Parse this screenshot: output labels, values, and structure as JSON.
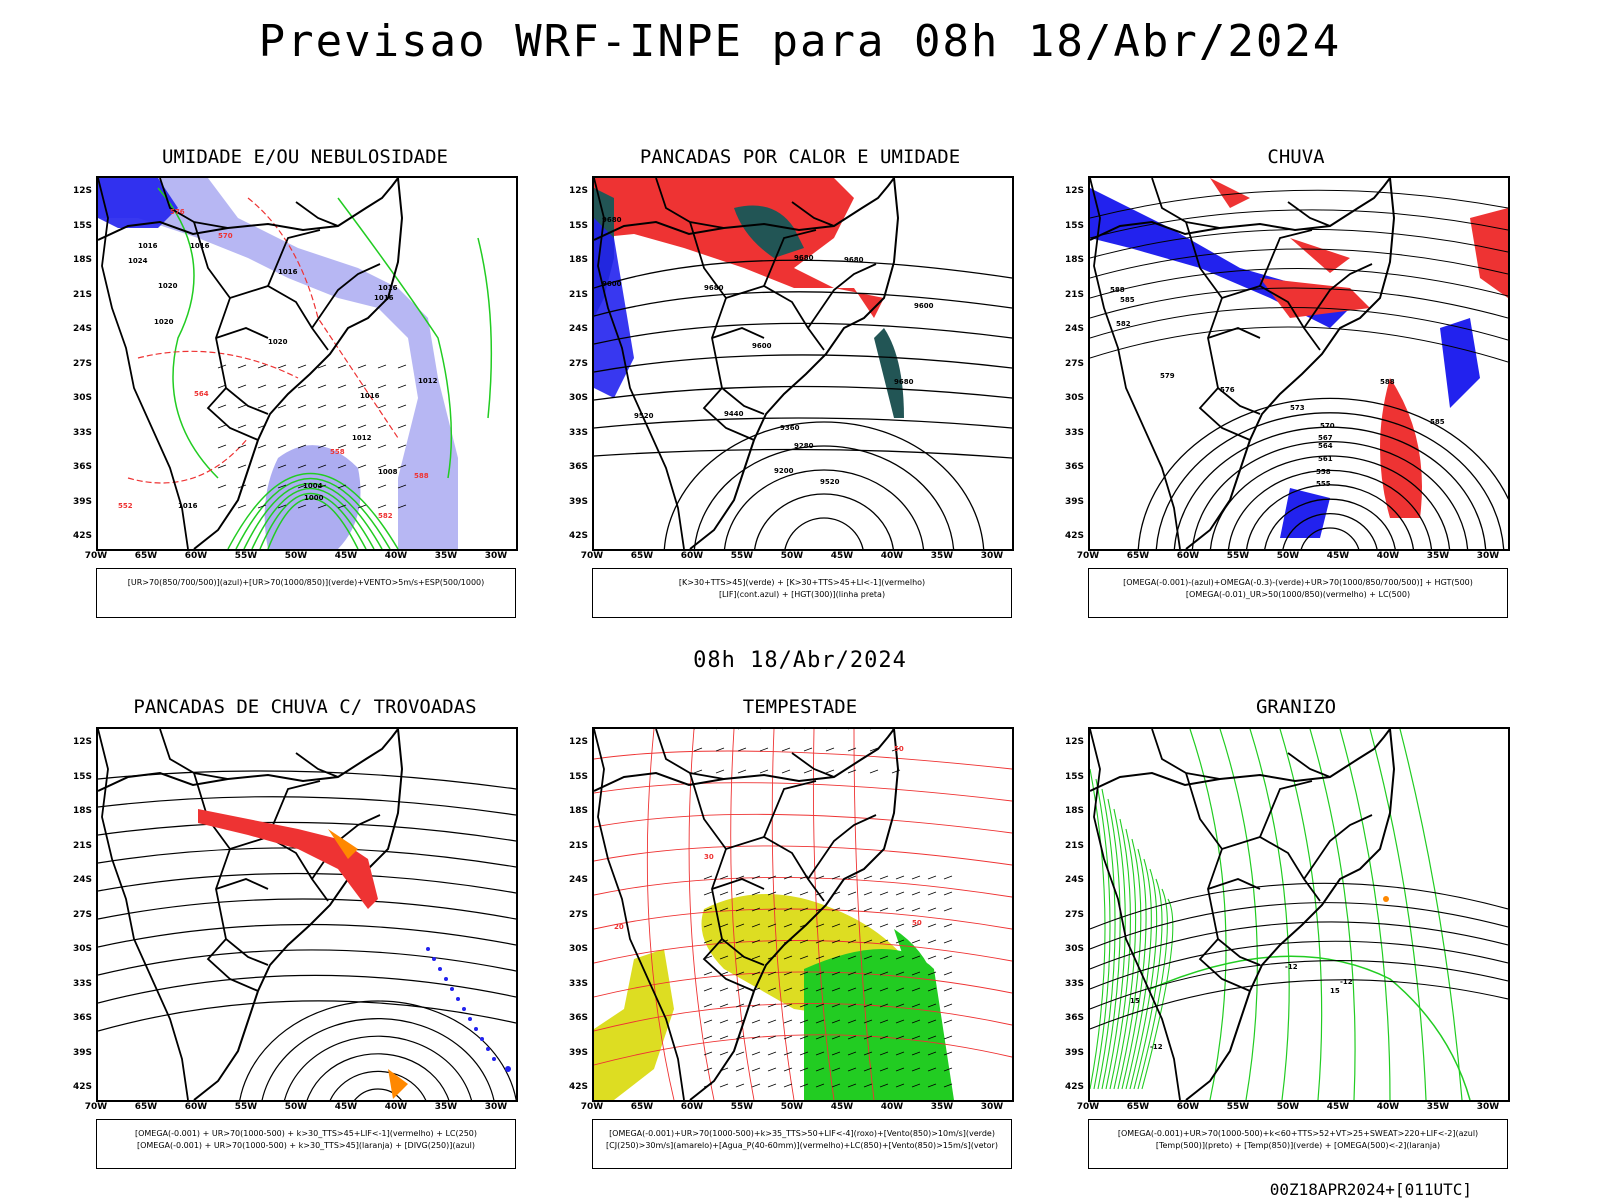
{
  "header": {
    "title": "Previsao WRF-INPE  para 08h 18/Abr/2024"
  },
  "middle_date": "08h 18/Abr/2024",
  "footer": {
    "stamp": "00Z18APR2024+[011UTC]"
  },
  "axes": {
    "lat_ticks": [
      "12S",
      "15S",
      "18S",
      "21S",
      "24S",
      "27S",
      "30S",
      "33S",
      "36S",
      "39S",
      "42S"
    ],
    "lon_ticks": [
      "70W",
      "65W",
      "60W",
      "55W",
      "50W",
      "45W",
      "40W",
      "35W",
      "30W"
    ]
  },
  "panels": [
    {
      "title": "UMIDADE E/OU NEBULOSIDADE",
      "legend": [
        "[UR>70(850/700/500)](azul)+[UR>70(1000/850)](verde)+VENTO>5m/s+ESP(500/1000)"
      ],
      "labels": [
        "1016",
        "1016",
        "1024",
        "1020",
        "1016",
        "1016",
        "1020",
        "1020",
        "1016",
        "1012",
        "1016",
        "1008",
        "1004",
        "1000",
        "1016",
        "1012",
        "576",
        "570",
        "564",
        "558",
        "552",
        "588",
        "582"
      ]
    },
    {
      "title": "PANCADAS POR CALOR E UMIDADE",
      "legend": [
        "[K>30+TTS>45](verde) + [K>30+TTS>45+LI<-1](vermelho)",
        "[LIF](cont.azul) + [HGT(300)](linha preta)"
      ],
      "labels": [
        "9680",
        "9600",
        "9680",
        "9680",
        "9680",
        "9600",
        "9520",
        "9440",
        "9360",
        "9280",
        "9200",
        "9520",
        "9600",
        "9680"
      ]
    },
    {
      "title": "CHUVA",
      "legend": [
        "[OMEGA(-0.001)-(azul)+OMEGA(-0.3)-(verde)+UR>70(1000/850/700/500)] + HGT(500)",
        "[OMEGA(-0.01)_UR>50(1000/850)(vermelho) + LC(500)"
      ],
      "labels": [
        "588",
        "585",
        "582",
        "579",
        "576",
        "573",
        "570",
        "567",
        "564",
        "561",
        "558",
        "555",
        "588",
        "585"
      ]
    },
    {
      "title": "PANCADAS DE CHUVA C/ TROVOADAS",
      "legend": [
        "[OMEGA(-0.001) + UR>70(1000-500) + k>30_TTS>45+LIF<-1](vermelho) + LC(250)",
        "[OMEGA(-0.001) + UR>70(1000-500) + k>30_TTS>45](laranja) + [DIVG(250)](azul)"
      ],
      "labels": []
    },
    {
      "title": "TEMPESTADE",
      "legend": [
        "[OMEGA(-0.001)+UR>70(1000-500)+k>35_TTS>50+LIF<-4](roxo)+[Vento(850)>10m/s](verde)",
        "[CJ(250)>30m/s](amarelo)+[Agua_P(40-60mm)](vermelho)+LC(850)+[Vento(850)>15m/s](vetor)"
      ],
      "labels": [
        "50",
        "50",
        "30",
        "20"
      ]
    },
    {
      "title": "GRANIZO",
      "legend": [
        "[OMEGA(-0.001)+UR>70(1000-500)+k<60+TTS>52+VT>25+SWEAT>220+LIF<-2](azul)",
        "[Temp(500)](preto) + [Temp(850)](verde) + [OMEGA(500)<-2](laranja)"
      ],
      "labels": [
        "-12",
        "-12",
        "15",
        "15",
        "-12"
      ]
    }
  ],
  "colors": {
    "blue": "#2222ee",
    "green": "#22cc22",
    "red": "#ee3333",
    "orange": "#ff8800",
    "yellow": "#dddd22",
    "teal": "#225555",
    "lightblue": "#9999ee"
  }
}
